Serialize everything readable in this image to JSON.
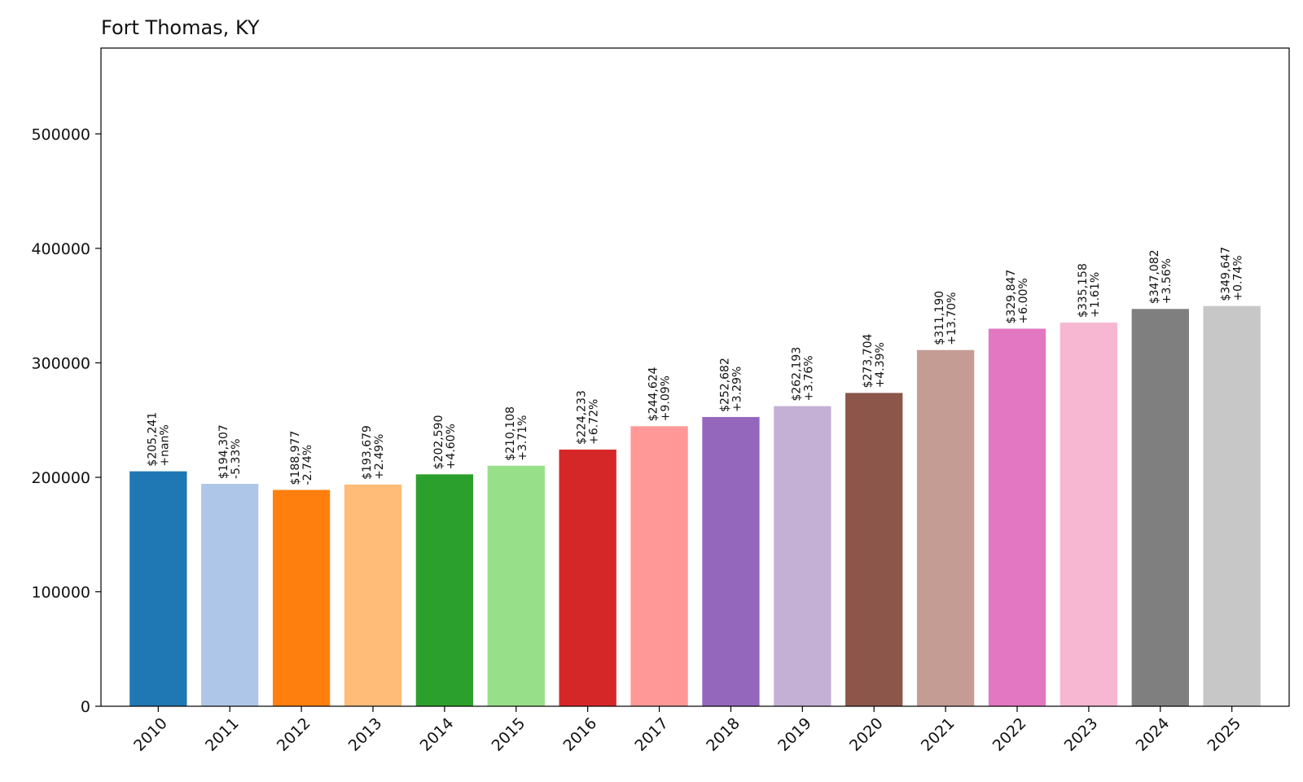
{
  "chart_data": {
    "type": "bar",
    "title": "Fort Thomas, KY",
    "xlabel": "",
    "ylabel": "",
    "ylim": [
      0,
      575000
    ],
    "yticks": [
      0,
      100000,
      200000,
      300000,
      400000,
      500000
    ],
    "grid": false,
    "legend": "none",
    "categories": [
      "2010",
      "2011",
      "2012",
      "2013",
      "2014",
      "2015",
      "2016",
      "2017",
      "2018",
      "2019",
      "2020",
      "2021",
      "2022",
      "2023",
      "2024",
      "2025"
    ],
    "values": [
      205241,
      194307,
      188977,
      193679,
      202590,
      210108,
      224233,
      244624,
      252682,
      262193,
      273704,
      311190,
      329847,
      335158,
      347082,
      349647
    ],
    "value_labels": [
      "$205,241",
      "$194,307",
      "$188,977",
      "$193,679",
      "$202,590",
      "$210,108",
      "$224,233",
      "$244,624",
      "$252,682",
      "$262,193",
      "$273,704",
      "$311,190",
      "$329,847",
      "$335,158",
      "$347,082",
      "$349,647"
    ],
    "change_labels": [
      "+nan%",
      "-5.33%",
      "-2.74%",
      "+2.49%",
      "+4.60%",
      "+3.71%",
      "+6.72%",
      "+9.09%",
      "+3.29%",
      "+3.76%",
      "+4.39%",
      "+13.70%",
      "+6.00%",
      "+1.61%",
      "+3.56%",
      "+0.74%"
    ],
    "colors": [
      "#1f77b4",
      "#aec7e8",
      "#ff7f0e",
      "#ffbb78",
      "#2ca02c",
      "#98df8a",
      "#d62728",
      "#ff9896",
      "#9467bd",
      "#c5b0d5",
      "#8c564b",
      "#c49c94",
      "#e377c2",
      "#f7b6d2",
      "#7f7f7f",
      "#c7c7c7"
    ]
  }
}
